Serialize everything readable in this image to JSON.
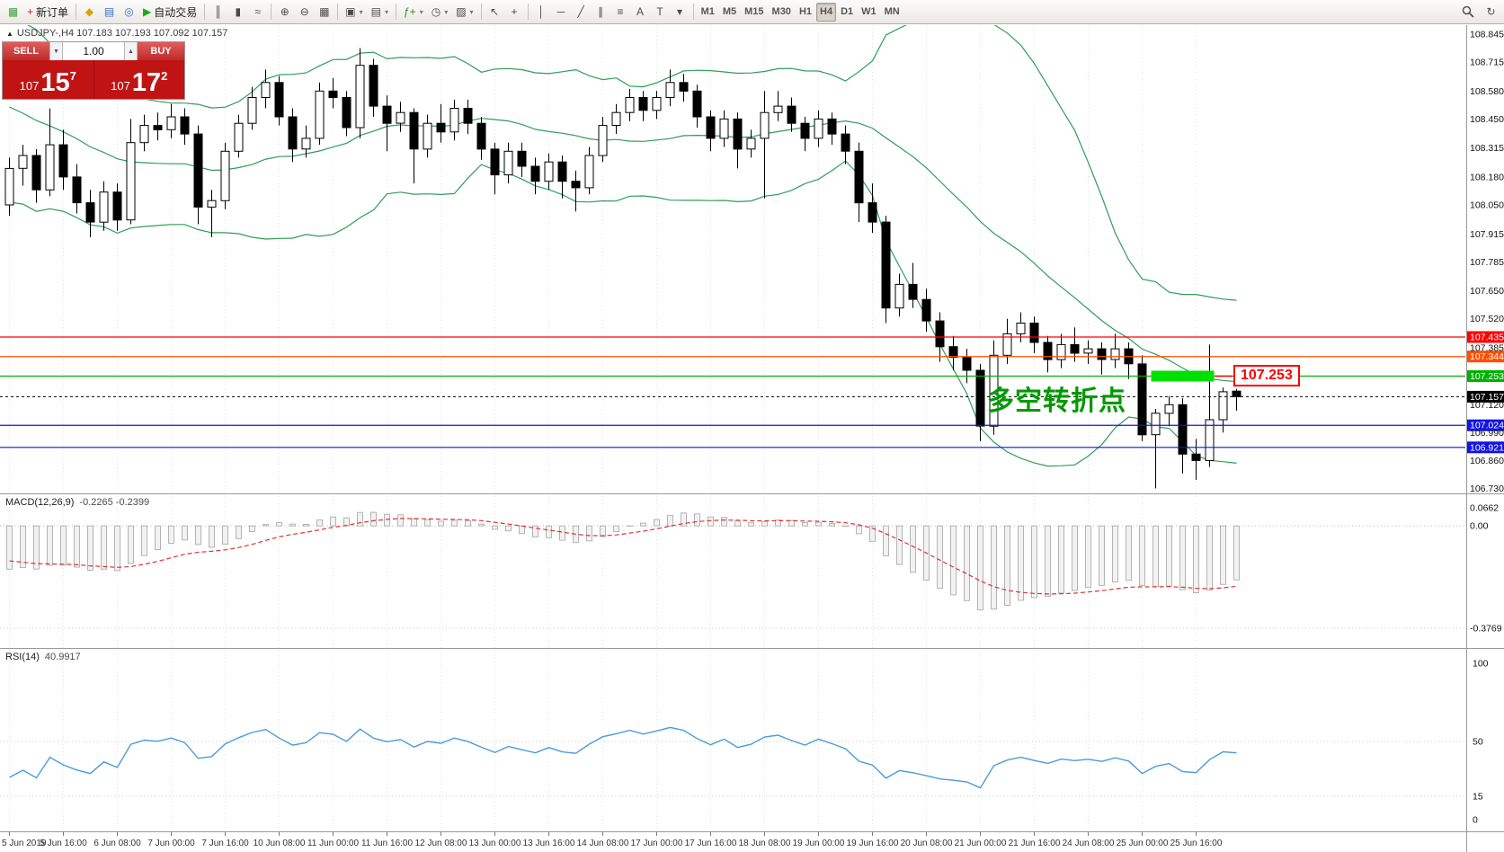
{
  "symbol_info": {
    "marker": "▲",
    "text": "USDJPY-,H4 107.183 107.193 107.092 107.157"
  },
  "trade_panel": {
    "sell_label": "SELL",
    "buy_label": "BUY",
    "volume": "1.00",
    "spinner_down": "▼",
    "spinner_up": "▲",
    "sell_price": {
      "base": "107",
      "big": "15",
      "sup": "7"
    },
    "buy_price": {
      "base": "107",
      "big": "17",
      "sup": "2"
    }
  },
  "annotations": {
    "turning_point": {
      "text": "多空转折点",
      "color": "#009a00"
    },
    "price_callout": {
      "text": "107.253",
      "color": "#ff0000"
    },
    "highlight_rect": {
      "i0": 85,
      "i1": 89,
      "price_top": 107.278,
      "price_bottom": 107.228,
      "color": "#00e000"
    }
  },
  "toolbar": {
    "groups": [
      {
        "items": [
          {
            "name": "chart-window-icon",
            "glyph": "▦",
            "color": "#3f9e3f"
          },
          {
            "name": "new-order-button",
            "glyph": "+",
            "color": "#cc2222",
            "label": "新订单"
          }
        ]
      },
      {
        "items": [
          {
            "name": "market-watch-icon",
            "glyph": "◆",
            "color": "#d9a400"
          },
          {
            "name": "data-window-icon",
            "glyph": "▤",
            "color": "#3a6fc4"
          },
          {
            "name": "navigator-icon",
            "glyph": "◎",
            "color": "#3a6fc4"
          },
          {
            "name": "autotrading-button",
            "glyph": "▶",
            "color": "#1fa51f",
            "label": "自动交易"
          }
        ]
      },
      {
        "items": [
          {
            "name": "bar-chart-button",
            "glyph": "║"
          },
          {
            "name": "candlestick-chart-button",
            "glyph": "▮"
          },
          {
            "name": "line-chart-button",
            "glyph": "≈"
          }
        ]
      },
      {
        "items": [
          {
            "name": "zoom-in-button",
            "glyph": "⊕"
          },
          {
            "name": "zoom-out-button",
            "glyph": "⊖"
          },
          {
            "name": "tile-windows-button",
            "glyph": "▦"
          }
        ]
      },
      {
        "items": [
          {
            "name": "new-chart-button",
            "glyph": "▣",
            "arrow": true
          },
          {
            "name": "profiles-button",
            "glyph": "▤",
            "arrow": true
          }
        ]
      },
      {
        "items": [
          {
            "name": "indicators-button",
            "glyph": "ƒ+",
            "color": "#2e8b2e",
            "arrow": true
          },
          {
            "name": "periods-button",
            "glyph": "◷",
            "arrow": true
          },
          {
            "name": "templates-button",
            "glyph": "▨",
            "arrow": true
          }
        ]
      },
      {
        "items": [
          {
            "name": "cursor-button",
            "glyph": "↖"
          },
          {
            "name": "crosshair-button",
            "glyph": "+"
          }
        ]
      },
      {
        "items": [
          {
            "name": "vertical-line-button",
            "glyph": "│"
          },
          {
            "name": "horizontal-line-button",
            "glyph": "─"
          },
          {
            "name": "trendline-button",
            "glyph": "╱"
          },
          {
            "name": "channel-button",
            "glyph": "∥"
          },
          {
            "name": "fibonacci-button",
            "glyph": "≡"
          },
          {
            "name": "text-button",
            "glyph": "A"
          },
          {
            "name": "label-button",
            "glyph": "T"
          },
          {
            "name": "shapes-button",
            "glyph": "▾"
          }
        ]
      },
      {
        "items": [
          {
            "name": "tf-m1-button",
            "text": "M1"
          },
          {
            "name": "tf-m5-button",
            "text": "M5"
          },
          {
            "name": "tf-m15-button",
            "text": "M15"
          },
          {
            "name": "tf-m30-button",
            "text": "M30"
          },
          {
            "name": "tf-h1-button",
            "text": "H1"
          },
          {
            "name": "tf-h4-button",
            "text": "H4",
            "active": true
          },
          {
            "name": "tf-d1-button",
            "text": "D1"
          },
          {
            "name": "tf-w1-button",
            "text": "W1"
          },
          {
            "name": "tf-mn-button",
            "text": "MN"
          }
        ]
      }
    ],
    "right_items": [
      {
        "name": "search-button",
        "glyph": "search"
      },
      {
        "name": "quick-scroll-button",
        "glyph": "↻"
      }
    ]
  },
  "chart_data": {
    "type": "candlestick",
    "symbol": "USDJPY-",
    "timeframe": "H4",
    "candles": [
      [
        108.05,
        108.27,
        108.0,
        108.22
      ],
      [
        108.22,
        108.33,
        108.14,
        108.28
      ],
      [
        108.28,
        108.31,
        108.06,
        108.12
      ],
      [
        108.12,
        108.5,
        108.09,
        108.33
      ],
      [
        108.33,
        108.4,
        108.12,
        108.18
      ],
      [
        108.18,
        108.24,
        108.01,
        108.06
      ],
      [
        108.06,
        108.12,
        107.9,
        107.97
      ],
      [
        107.97,
        108.16,
        107.93,
        108.11
      ],
      [
        108.11,
        108.15,
        107.93,
        107.98
      ],
      [
        107.98,
        108.45,
        107.96,
        108.34
      ],
      [
        108.34,
        108.47,
        108.3,
        108.42
      ],
      [
        108.42,
        108.48,
        108.35,
        108.4
      ],
      [
        108.4,
        108.52,
        108.36,
        108.46
      ],
      [
        108.46,
        108.5,
        108.33,
        108.38
      ],
      [
        108.38,
        108.42,
        107.96,
        108.04
      ],
      [
        108.04,
        108.12,
        107.9,
        108.07
      ],
      [
        108.07,
        108.34,
        108.03,
        108.3
      ],
      [
        108.3,
        108.47,
        108.27,
        108.43
      ],
      [
        108.43,
        108.6,
        108.4,
        108.55
      ],
      [
        108.55,
        108.68,
        108.5,
        108.62
      ],
      [
        108.62,
        108.65,
        108.42,
        108.46
      ],
      [
        108.46,
        108.5,
        108.25,
        108.31
      ],
      [
        108.31,
        108.42,
        108.27,
        108.36
      ],
      [
        108.36,
        108.62,
        108.33,
        108.58
      ],
      [
        108.58,
        108.64,
        108.5,
        108.55
      ],
      [
        108.55,
        108.58,
        108.37,
        108.41
      ],
      [
        108.41,
        108.78,
        108.36,
        108.7
      ],
      [
        108.7,
        108.73,
        108.46,
        108.51
      ],
      [
        108.51,
        108.56,
        108.3,
        108.43
      ],
      [
        108.43,
        108.53,
        108.39,
        108.48
      ],
      [
        108.48,
        108.5,
        108.15,
        108.31
      ],
      [
        108.31,
        108.47,
        108.27,
        108.43
      ],
      [
        108.43,
        108.52,
        108.34,
        108.39
      ],
      [
        108.39,
        108.54,
        108.35,
        108.5
      ],
      [
        108.5,
        108.54,
        108.38,
        108.43
      ],
      [
        108.43,
        108.46,
        108.26,
        108.31
      ],
      [
        108.31,
        108.34,
        108.1,
        108.19
      ],
      [
        108.19,
        108.34,
        108.15,
        108.3
      ],
      [
        108.3,
        108.34,
        108.18,
        108.23
      ],
      [
        108.23,
        108.27,
        108.1,
        108.16
      ],
      [
        108.16,
        108.29,
        108.12,
        108.25
      ],
      [
        108.25,
        108.28,
        108.08,
        108.16
      ],
      [
        108.16,
        108.21,
        108.02,
        108.13
      ],
      [
        108.13,
        108.32,
        108.1,
        108.28
      ],
      [
        108.28,
        108.46,
        108.25,
        108.42
      ],
      [
        108.42,
        108.52,
        108.38,
        108.48
      ],
      [
        108.48,
        108.59,
        108.44,
        108.55
      ],
      [
        108.55,
        108.58,
        108.44,
        108.49
      ],
      [
        108.49,
        108.58,
        108.45,
        108.55
      ],
      [
        108.55,
        108.68,
        108.51,
        108.62
      ],
      [
        108.62,
        108.66,
        108.53,
        108.58
      ],
      [
        108.58,
        108.61,
        108.41,
        108.46
      ],
      [
        108.46,
        108.49,
        108.3,
        108.36
      ],
      [
        108.36,
        108.49,
        108.32,
        108.45
      ],
      [
        108.45,
        108.48,
        108.22,
        108.31
      ],
      [
        108.31,
        108.4,
        108.27,
        108.36
      ],
      [
        108.36,
        108.58,
        108.08,
        108.48
      ],
      [
        108.48,
        108.58,
        108.44,
        108.51
      ],
      [
        108.51,
        108.55,
        108.39,
        108.43
      ],
      [
        108.43,
        108.46,
        108.3,
        108.36
      ],
      [
        108.36,
        108.49,
        108.32,
        108.45
      ],
      [
        108.45,
        108.48,
        108.33,
        108.38
      ],
      [
        108.38,
        108.42,
        108.24,
        108.3
      ],
      [
        108.3,
        108.34,
        107.97,
        108.06
      ],
      [
        108.06,
        108.15,
        107.92,
        107.97
      ],
      [
        107.97,
        108.0,
        107.5,
        107.57
      ],
      [
        107.57,
        107.73,
        107.53,
        107.68
      ],
      [
        107.68,
        107.78,
        107.57,
        107.61
      ],
      [
        107.61,
        107.66,
        107.46,
        107.51
      ],
      [
        107.51,
        107.55,
        107.32,
        107.39
      ],
      [
        107.39,
        107.44,
        107.28,
        107.34
      ],
      [
        107.34,
        107.38,
        107.22,
        107.28
      ],
      [
        107.28,
        107.31,
        106.95,
        107.02
      ],
      [
        107.02,
        107.42,
        106.98,
        107.35
      ],
      [
        107.35,
        107.52,
        107.31,
        107.45
      ],
      [
        107.45,
        107.55,
        107.41,
        107.5
      ],
      [
        107.5,
        107.53,
        107.36,
        107.41
      ],
      [
        107.41,
        107.44,
        107.27,
        107.33
      ],
      [
        107.33,
        107.45,
        107.29,
        107.4
      ],
      [
        107.4,
        107.48,
        107.32,
        107.36
      ],
      [
        107.36,
        107.42,
        107.31,
        107.38
      ],
      [
        107.38,
        107.41,
        107.26,
        107.33
      ],
      [
        107.33,
        107.45,
        107.29,
        107.38
      ],
      [
        107.38,
        107.41,
        107.24,
        107.31
      ],
      [
        107.31,
        107.35,
        106.95,
        106.98
      ],
      [
        106.98,
        107.1,
        106.73,
        107.08
      ],
      [
        107.08,
        107.16,
        107.02,
        107.12
      ],
      [
        107.12,
        107.15,
        106.8,
        106.89
      ],
      [
        106.89,
        106.96,
        106.77,
        106.86
      ],
      [
        106.86,
        107.4,
        106.83,
        107.05
      ],
      [
        107.05,
        107.2,
        106.99,
        107.18
      ],
      [
        107.183,
        107.193,
        107.092,
        107.157
      ]
    ],
    "seed_closes": [
      108.85,
      108.8,
      108.83,
      108.74,
      108.7,
      108.73,
      108.62,
      108.58,
      108.62,
      108.5,
      108.46,
      108.5,
      108.38,
      108.34,
      108.38,
      108.26,
      108.22,
      108.26,
      108.12
    ],
    "time_labels": [
      {
        "i": 0,
        "t": "5 Jun 2019"
      },
      {
        "i": 4,
        "t": "5 Jun 16:00"
      },
      {
        "i": 8,
        "t": "6 Jun 08:00"
      },
      {
        "i": 12,
        "t": "7 Jun 00:00"
      },
      {
        "i": 16,
        "t": "7 Jun 16:00"
      },
      {
        "i": 20,
        "t": "10 Jun 08:00"
      },
      {
        "i": 24,
        "t": "11 Jun 00:00"
      },
      {
        "i": 28,
        "t": "11 Jun 16:00"
      },
      {
        "i": 32,
        "t": "12 Jun 08:00"
      },
      {
        "i": 36,
        "t": "13 Jun 00:00"
      },
      {
        "i": 40,
        "t": "13 Jun 16:00"
      },
      {
        "i": 44,
        "t": "14 Jun 08:00"
      },
      {
        "i": 48,
        "t": "17 Jun 00:00"
      },
      {
        "i": 52,
        "t": "17 Jun 16:00"
      },
      {
        "i": 56,
        "t": "18 Jun 08:00"
      },
      {
        "i": 60,
        "t": "19 Jun 00:00"
      },
      {
        "i": 64,
        "t": "19 Jun 16:00"
      },
      {
        "i": 68,
        "t": "20 Jun 08:00"
      },
      {
        "i": 72,
        "t": "21 Jun 00:00"
      },
      {
        "i": 76,
        "t": "21 Jun 16:00"
      },
      {
        "i": 80,
        "t": "24 Jun 08:00"
      },
      {
        "i": 84,
        "t": "25 Jun 00:00"
      },
      {
        "i": 88,
        "t": "25 Jun 16:00"
      }
    ],
    "price_scale": [
      "108.845",
      "108.715",
      "108.580",
      "108.450",
      "108.315",
      "108.180",
      "108.050",
      "107.915",
      "107.785",
      "107.650",
      "107.520",
      "107.385",
      "107.120",
      "106.990",
      "106.860",
      "106.730"
    ],
    "lines": [
      {
        "price": 107.435,
        "label": "107.435",
        "color": "#ff0000"
      },
      {
        "price": 107.344,
        "label": "107.344",
        "color": "#ff4f00"
      },
      {
        "price": 107.253,
        "label": "107.253",
        "color": "#00b200"
      },
      {
        "price": 107.024,
        "label": "107.024",
        "color": "#1313e6"
      },
      {
        "price": 106.921,
        "label": "106.921",
        "color": "#1313e6"
      }
    ],
    "current_price": {
      "price": 107.157,
      "label": "107.157",
      "color": "#000000"
    },
    "indicators": {
      "bollinger": {
        "period": 20,
        "deviation": 2,
        "color": "#2e9e57"
      },
      "macd": {
        "label": "MACD(12,26,9)",
        "values": "-0.2265 -0.2399",
        "scale": [
          "0.0662",
          "0.00",
          "-0.3769"
        ],
        "range": [
          -0.42,
          0.09
        ],
        "signal_color": "#e03232",
        "bar_fill": "#f2f2f2",
        "bar_stroke": "#b4b4b4"
      },
      "rsi": {
        "label": "RSI(14)",
        "value": "40.9917",
        "scale": [
          "100",
          "50",
          "15",
          "0"
        ],
        "range": [
          0,
          100
        ],
        "levels": [
          50,
          15
        ],
        "color": "#4a9cd8"
      }
    }
  }
}
